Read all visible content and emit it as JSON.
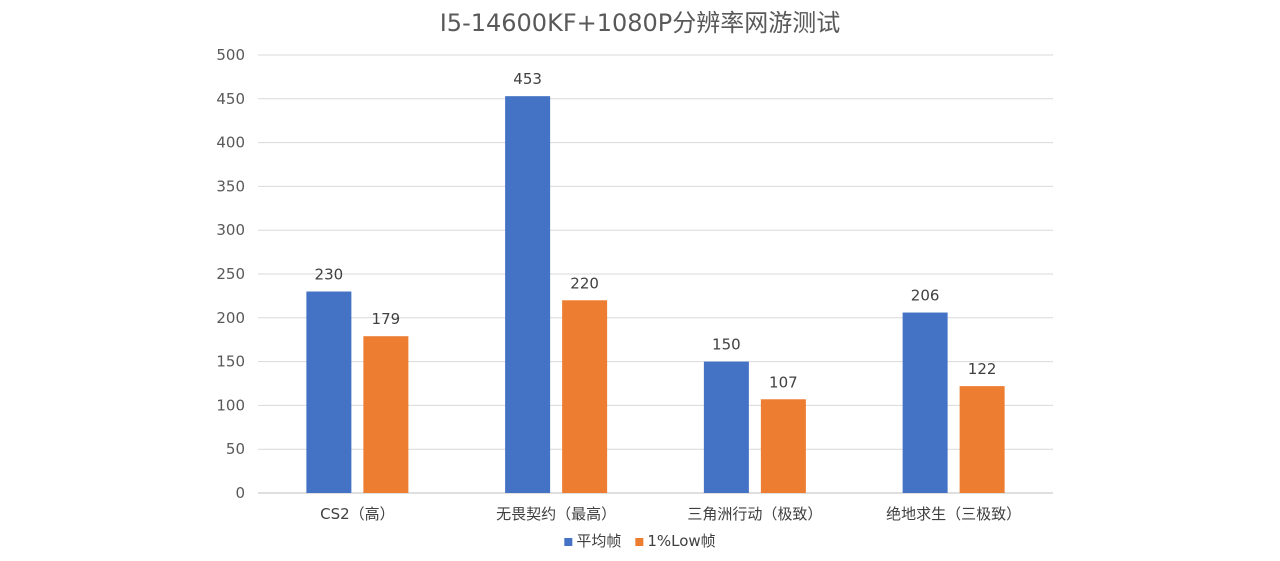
{
  "chart_data": {
    "type": "bar",
    "title": "I5-14600KF+1080P分辨率网游测试",
    "xlabel": "",
    "ylabel": "",
    "ylim": [
      0,
      500
    ],
    "yticks": [
      0,
      50,
      100,
      150,
      200,
      250,
      300,
      350,
      400,
      450,
      500
    ],
    "categories": [
      "CS2（高）",
      "无畏契约（最高）",
      "三角洲行动（极致）",
      "绝地求生（三极致）"
    ],
    "series": [
      {
        "name": "平均帧",
        "color": "#4472c4",
        "values": [
          230,
          453,
          150,
          206
        ]
      },
      {
        "name": "1%Low帧",
        "color": "#ed7d31",
        "values": [
          179,
          220,
          107,
          122
        ]
      }
    ],
    "grid": true,
    "legend": "bottom"
  }
}
